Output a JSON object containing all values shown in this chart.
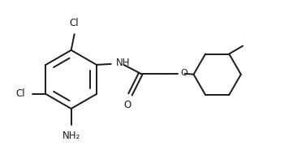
{
  "bg_color": "#ffffff",
  "line_color": "#1a1a1a",
  "line_width": 1.4,
  "font_size": 8.5,
  "fig_width": 3.77,
  "fig_height": 1.85,
  "xlim": [
    0.0,
    3.8
  ],
  "ylim": [
    0.15,
    1.9
  ]
}
